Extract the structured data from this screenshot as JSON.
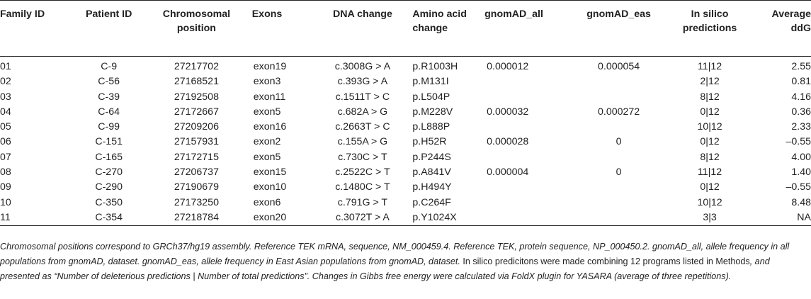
{
  "table": {
    "headers": [
      "Family ID",
      "Patient ID",
      "Chromosomal position",
      "Exons",
      "DNA change",
      "Amino acid change",
      "gnomAD_all",
      "gnomAD_eas",
      "In silico predictions",
      "Average ddG"
    ],
    "rows": [
      [
        "01",
        "C-9",
        "27217702",
        "exon19",
        "c.3008G > A",
        "p.R1003H",
        "0.000012",
        "0.000054",
        "11|12",
        "2.55"
      ],
      [
        "02",
        "C-56",
        "27168521",
        "exon3",
        "c.393G > A",
        "p.M131I",
        "",
        "",
        "2|12",
        "0.81"
      ],
      [
        "03",
        "C-39",
        "27192508",
        "exon11",
        "c.1511T > C",
        "p.L504P",
        "",
        "",
        "8|12",
        "4.16"
      ],
      [
        "04",
        "C-64",
        "27172667",
        "exon5",
        "c.682A > G",
        "p.M228V",
        "0.000032",
        "0.000272",
        "0|12",
        "0.36"
      ],
      [
        "05",
        "C-99",
        "27209206",
        "exon16",
        "c.2663T > C",
        "p.L888P",
        "",
        "",
        "10|12",
        "2.33"
      ],
      [
        "06",
        "C-151",
        "27157931",
        "exon2",
        "c.155A > G",
        "p.H52R",
        "0.000028",
        "0",
        "0|12",
        "–0.55"
      ],
      [
        "07",
        "C-165",
        "27172715",
        "exon5",
        "c.730C > T",
        "p.P244S",
        "",
        "",
        "8|12",
        "4.00"
      ],
      [
        "08",
        "C-270",
        "27206737",
        "exon15",
        "c.2522C > T",
        "p.A841V",
        "0.000004",
        "0",
        "11|12",
        "1.40"
      ],
      [
        "09",
        "C-290",
        "27190679",
        "exon10",
        "c.1480C > T",
        "p.H494Y",
        "",
        "",
        "0|12",
        "–0.55"
      ],
      [
        "10",
        "C-350",
        "27173250",
        "exon6",
        "c.791G > T",
        "p.C264F",
        "",
        "",
        "10|12",
        "8.48"
      ],
      [
        "11",
        "C-354",
        "27218784",
        "exon20",
        "c.3072T > A",
        "p.Y1024X",
        "",
        "",
        "3|3",
        "NA"
      ]
    ]
  },
  "footnote": {
    "part1": "Chromosomal positions correspond to GRCh37/hg19 assembly. Reference TEK mRNA, sequence, NM_000459.4. Reference TEK, protein sequence, NP_000450.2. gnomAD_all, allele frequency in all populations from gnomAD, dataset. gnomAD_eas, allele frequency in East Asian populations from gnomAD, dataset. ",
    "part2": "In silico predicitons were made combining 12 programs listed in ",
    "part3": "Methods",
    "part4": ", and presented as “Number of deleterious predictions | Number of total predictions”. Changes in Gibbs free energy were calculated via FoldX plugin for YASARA (average of three repetitions)."
  }
}
